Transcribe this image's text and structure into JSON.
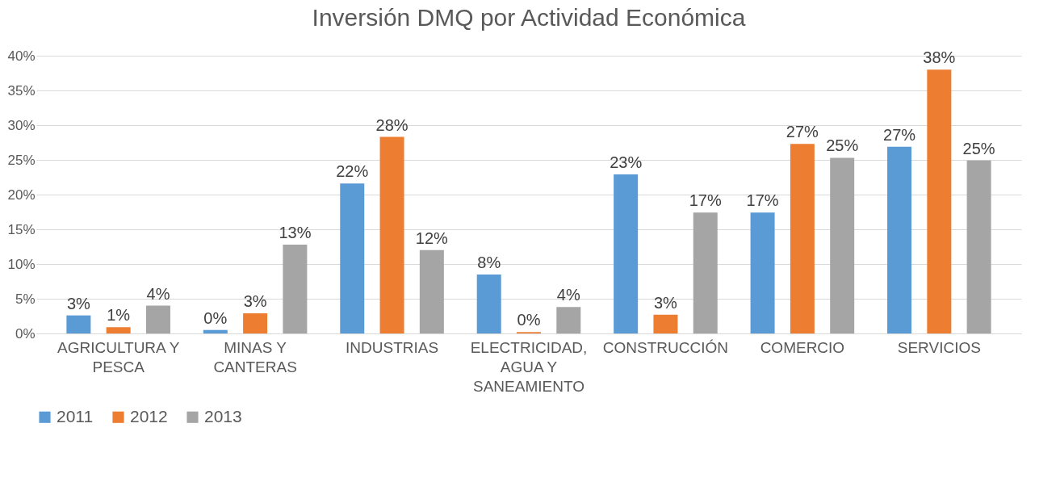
{
  "chart_data": {
    "type": "bar",
    "title": "Inversión DMQ por Actividad Económica",
    "categories": [
      "AGRICULTURA Y PESCA",
      "MINAS Y CANTERAS",
      "INDUSTRIAS",
      "ELECTRICIDAD, AGUA Y SANEAMIENTO",
      "CONSTRUCCIÓN",
      "COMERCIO",
      "SERVICIOS"
    ],
    "series": [
      {
        "name": "2011",
        "color": "#5b9bd5",
        "values": [
          2.6,
          0.5,
          21.6,
          8.5,
          22.9,
          17.4,
          26.9
        ],
        "value_labels": [
          "3%",
          "0%",
          "22%",
          "8%",
          "23%",
          "17%",
          "27%"
        ]
      },
      {
        "name": "2012",
        "color": "#ed7d31",
        "values": [
          0.9,
          2.9,
          28.3,
          0.2,
          2.7,
          27.3,
          38.0
        ],
        "value_labels": [
          "1%",
          "3%",
          "28%",
          "0%",
          "3%",
          "27%",
          "38%"
        ]
      },
      {
        "name": "2013",
        "color": "#a5a5a5",
        "values": [
          4.0,
          12.8,
          12.0,
          3.8,
          17.4,
          25.3,
          24.9
        ],
        "value_labels": [
          "4%",
          "13%",
          "12%",
          "4%",
          "17%",
          "25%",
          "25%"
        ]
      }
    ],
    "ylim": [
      0,
      40
    ],
    "yticks": [
      {
        "value": 0,
        "label": "0%"
      },
      {
        "value": 5,
        "label": "5%"
      },
      {
        "value": 10,
        "label": "10%"
      },
      {
        "value": 15,
        "label": "15%"
      },
      {
        "value": 20,
        "label": "20%"
      },
      {
        "value": 25,
        "label": "25%"
      },
      {
        "value": 30,
        "label": "30%"
      },
      {
        "value": 35,
        "label": "35%"
      },
      {
        "value": 40,
        "label": "40%"
      }
    ],
    "grid": "y",
    "legend": "bottom"
  }
}
